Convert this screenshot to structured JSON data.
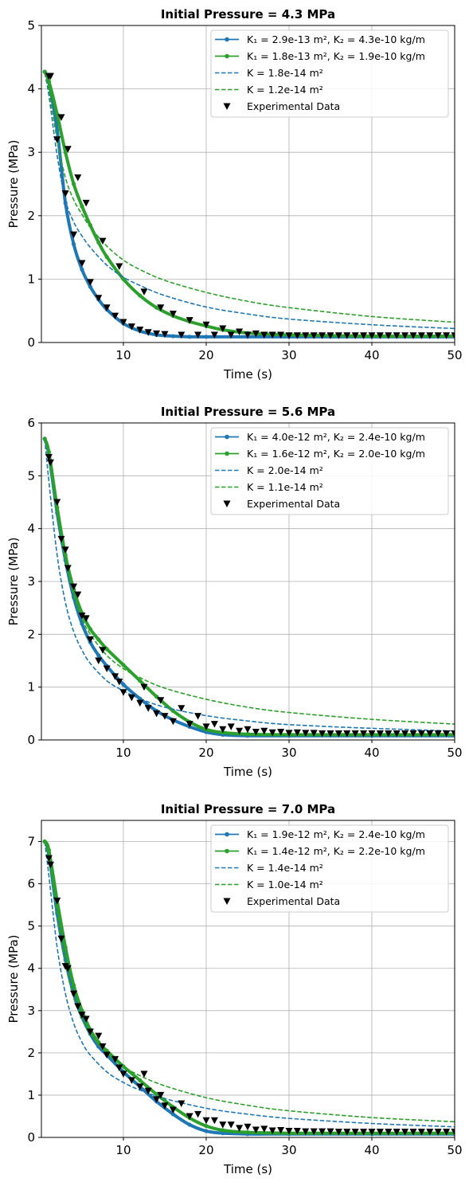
{
  "colors": {
    "blue": "#1f77b4",
    "green": "#2ca02c",
    "marker": "#000000",
    "grid": "#b0b0b0",
    "legend_border": "#cccccc"
  },
  "chart_data": [
    {
      "type": "line",
      "title": "Initial Pressure = 4.3 MPa",
      "xlabel": "Time (s)",
      "ylabel": "Pressure (MPa)",
      "xlim": [
        0.1,
        50
      ],
      "ylim": [
        0,
        5
      ],
      "xticks": [
        10,
        20,
        30,
        40,
        50
      ],
      "yticks": [
        0,
        1,
        2,
        3,
        4,
        5
      ],
      "grid": true,
      "legend_position": "upper right",
      "series": [
        {
          "name": "K₁ = 2.9e-13 m², K₂ = 4.3e-10 kg/m",
          "style": "line-dots",
          "color": "blue",
          "x": [
            0.5,
            1,
            2,
            3,
            4,
            5,
            6,
            7,
            8,
            10,
            12,
            14,
            16,
            18,
            20,
            25,
            30,
            40,
            50
          ],
          "y": [
            4.27,
            4.1,
            3.35,
            2.2,
            1.55,
            1.15,
            0.88,
            0.68,
            0.52,
            0.3,
            0.18,
            0.12,
            0.1,
            0.09,
            0.09,
            0.09,
            0.09,
            0.09,
            0.09
          ]
        },
        {
          "name": "K₁ = 1.8e-13 m², K₂ = 1.9e-10 kg/m",
          "style": "line-dots",
          "color": "green",
          "x": [
            0.5,
            1,
            2,
            3,
            4,
            5,
            6,
            7,
            8,
            10,
            12,
            14,
            16,
            18,
            20,
            22,
            25,
            30,
            40,
            50
          ],
          "y": [
            4.27,
            4.12,
            3.6,
            3.0,
            2.5,
            2.15,
            1.85,
            1.58,
            1.35,
            1.0,
            0.74,
            0.55,
            0.42,
            0.33,
            0.26,
            0.2,
            0.15,
            0.12,
            0.1,
            0.1
          ]
        },
        {
          "name": "K = 1.8e-14 m²",
          "style": "dashed",
          "color": "blue",
          "x": [
            0.5,
            1,
            2,
            3,
            4,
            5,
            6,
            8,
            10,
            12,
            15,
            20,
            25,
            30,
            40,
            50
          ],
          "y": [
            4.25,
            3.9,
            2.95,
            2.25,
            1.9,
            1.68,
            1.5,
            1.22,
            1.03,
            0.9,
            0.74,
            0.56,
            0.45,
            0.37,
            0.28,
            0.22
          ]
        },
        {
          "name": "K = 1.2e-14 m²",
          "style": "dashed",
          "color": "green",
          "x": [
            0.5,
            1,
            2,
            3,
            4,
            5,
            6,
            8,
            10,
            12,
            15,
            20,
            25,
            30,
            40,
            50
          ],
          "y": [
            4.25,
            4.0,
            3.2,
            2.6,
            2.25,
            2.02,
            1.82,
            1.52,
            1.3,
            1.15,
            0.98,
            0.79,
            0.65,
            0.55,
            0.41,
            0.32
          ]
        },
        {
          "name": "Experimental Data",
          "style": "markers",
          "color": "marker",
          "x": [
            1,
            1.2,
            2,
            2.5,
            3,
            3.3,
            4,
            4.5,
            5,
            5.5,
            6,
            7,
            7.5,
            8,
            9,
            9.5,
            10,
            11,
            12,
            12.5,
            13,
            14,
            14.5,
            15,
            16,
            17,
            18,
            19,
            20,
            21,
            22,
            23,
            24,
            25,
            26,
            27,
            28,
            29,
            30,
            31,
            32,
            33,
            34,
            35,
            36,
            37,
            38,
            39,
            40,
            41,
            42,
            43,
            44,
            45,
            46,
            47,
            48,
            49,
            50
          ],
          "y": [
            4.2,
            4.2,
            3.2,
            3.55,
            2.35,
            3.05,
            1.7,
            2.6,
            1.25,
            2.2,
            0.95,
            0.7,
            1.6,
            0.55,
            0.42,
            1.2,
            0.32,
            0.25,
            0.2,
            0.8,
            0.16,
            0.14,
            0.55,
            0.13,
            0.45,
            0.12,
            0.35,
            0.12,
            0.28,
            0.12,
            0.22,
            0.12,
            0.17,
            0.12,
            0.14,
            0.12,
            0.12,
            0.12,
            0.11,
            0.11,
            0.11,
            0.11,
            0.11,
            0.11,
            0.11,
            0.11,
            0.11,
            0.11,
            0.11,
            0.11,
            0.11,
            0.11,
            0.11,
            0.11,
            0.11,
            0.11,
            0.11,
            0.11,
            0.11
          ]
        }
      ]
    },
    {
      "type": "line",
      "title": "Initial Pressure = 5.6 MPa",
      "xlabel": "Time (s)",
      "ylabel": "Pressure (MPa)",
      "xlim": [
        0.1,
        50
      ],
      "ylim": [
        0,
        6
      ],
      "xticks": [
        10,
        20,
        30,
        40,
        50
      ],
      "yticks": [
        0,
        1,
        2,
        3,
        4,
        5,
        6
      ],
      "grid": true,
      "legend_position": "upper right",
      "series": [
        {
          "name": "K₁ = 4.0e-12 m², K₂ = 2.4e-10 kg/m",
          "style": "line-dots",
          "color": "blue",
          "x": [
            0.5,
            1,
            2,
            3,
            4,
            5,
            6,
            7,
            8,
            10,
            12,
            14,
            16,
            18,
            20,
            22,
            25,
            30,
            40,
            50
          ],
          "y": [
            5.7,
            5.4,
            4.3,
            3.4,
            2.7,
            2.2,
            1.85,
            1.6,
            1.4,
            1.05,
            0.78,
            0.55,
            0.38,
            0.25,
            0.15,
            0.1,
            0.08,
            0.08,
            0.08,
            0.08
          ]
        },
        {
          "name": "K₁ = 1.6e-12 m², K₂ = 2.0e-10 kg/m",
          "style": "line-dots",
          "color": "green",
          "x": [
            0.5,
            1,
            2,
            3,
            4,
            5,
            6,
            7,
            8,
            10,
            12,
            14,
            16,
            18,
            20,
            22,
            25,
            30,
            40,
            50
          ],
          "y": [
            5.7,
            5.45,
            4.4,
            3.5,
            2.85,
            2.4,
            2.1,
            1.9,
            1.72,
            1.42,
            1.12,
            0.82,
            0.55,
            0.34,
            0.2,
            0.14,
            0.11,
            0.1,
            0.1,
            0.1
          ]
        },
        {
          "name": "K = 2.0e-14 m²",
          "style": "dashed",
          "color": "blue",
          "x": [
            0.5,
            1,
            2,
            3,
            4,
            5,
            6,
            8,
            10,
            12,
            15,
            20,
            25,
            30,
            40,
            50
          ],
          "y": [
            5.7,
            4.9,
            3.5,
            2.6,
            2.05,
            1.7,
            1.45,
            1.12,
            0.93,
            0.78,
            0.62,
            0.46,
            0.36,
            0.29,
            0.22,
            0.17
          ]
        },
        {
          "name": "K = 1.1e-14 m²",
          "style": "dashed",
          "color": "green",
          "x": [
            0.5,
            1,
            2,
            3,
            4,
            5,
            6,
            8,
            10,
            12,
            15,
            20,
            25,
            30,
            40,
            50
          ],
          "y": [
            5.7,
            5.35,
            4.4,
            3.45,
            2.75,
            2.3,
            2.0,
            1.6,
            1.35,
            1.18,
            0.98,
            0.77,
            0.62,
            0.52,
            0.39,
            0.3
          ]
        },
        {
          "name": "Experimental Data",
          "style": "markers",
          "color": "marker",
          "x": [
            1,
            1.2,
            2,
            2.5,
            3,
            3.3,
            4,
            4.5,
            5,
            5.5,
            6,
            7,
            7.5,
            8,
            9,
            9.5,
            10,
            11,
            12,
            12.5,
            13,
            14,
            14.5,
            15,
            16,
            17,
            18,
            19,
            20,
            21,
            22,
            23,
            24,
            25,
            26,
            27,
            28,
            29,
            30,
            31,
            32,
            33,
            34,
            35,
            36,
            37,
            38,
            39,
            40,
            41,
            42,
            43,
            44,
            45,
            46,
            47,
            48,
            49,
            50
          ],
          "y": [
            5.35,
            5.25,
            4.5,
            3.8,
            3.6,
            3.25,
            2.9,
            2.75,
            2.35,
            2.3,
            1.9,
            1.5,
            1.7,
            1.35,
            1.2,
            1.1,
            0.9,
            0.8,
            0.7,
            1.0,
            0.6,
            0.5,
            0.75,
            0.45,
            0.35,
            0.6,
            0.3,
            0.45,
            0.25,
            0.3,
            0.2,
            0.25,
            0.17,
            0.2,
            0.15,
            0.17,
            0.14,
            0.15,
            0.13,
            0.14,
            0.13,
            0.13,
            0.12,
            0.12,
            0.12,
            0.12,
            0.12,
            0.12,
            0.12,
            0.12,
            0.12,
            0.12,
            0.12,
            0.12,
            0.12,
            0.12,
            0.12,
            0.12,
            0.12
          ]
        }
      ]
    },
    {
      "type": "line",
      "title": "Initial Pressure = 7.0 MPa",
      "xlabel": "Time (s)",
      "ylabel": "Pressure (MPa)",
      "xlim": [
        0.1,
        50
      ],
      "ylim": [
        0,
        7.5
      ],
      "xticks": [
        10,
        20,
        30,
        40,
        50
      ],
      "yticks": [
        0,
        1,
        2,
        3,
        4,
        5,
        6,
        7
      ],
      "grid": true,
      "legend_position": "upper right",
      "series": [
        {
          "name": "K₁ = 1.9e-12 m², K₂ = 2.4e-10 kg/m",
          "style": "line-dots",
          "color": "blue",
          "x": [
            0.5,
            1,
            2,
            3,
            4,
            5,
            6,
            7,
            8,
            10,
            12,
            14,
            16,
            18,
            20,
            22,
            25,
            30,
            40,
            50
          ],
          "y": [
            7.0,
            6.7,
            5.3,
            4.2,
            3.4,
            2.85,
            2.45,
            2.15,
            1.95,
            1.55,
            1.2,
            0.85,
            0.55,
            0.3,
            0.15,
            0.1,
            0.08,
            0.08,
            0.08,
            0.08
          ]
        },
        {
          "name": "K₁ = 1.4e-12 m², K₂ = 2.2e-10 kg/m",
          "style": "line-dots",
          "color": "green",
          "x": [
            0.5,
            1,
            2,
            3,
            4,
            5,
            6,
            7,
            8,
            10,
            12,
            14,
            16,
            18,
            20,
            22,
            25,
            30,
            40,
            50
          ],
          "y": [
            7.0,
            6.8,
            5.6,
            4.5,
            3.6,
            3.0,
            2.55,
            2.25,
            2.05,
            1.68,
            1.35,
            1.02,
            0.72,
            0.46,
            0.27,
            0.17,
            0.12,
            0.1,
            0.1,
            0.1
          ]
        },
        {
          "name": "K = 1.4e-14 m²",
          "style": "dashed",
          "color": "blue",
          "x": [
            0.5,
            1,
            2,
            3,
            4,
            5,
            6,
            8,
            10,
            12,
            15,
            20,
            25,
            30,
            40,
            50
          ],
          "y": [
            7.0,
            6.2,
            4.5,
            3.4,
            2.7,
            2.25,
            1.95,
            1.55,
            1.3,
            1.12,
            0.92,
            0.69,
            0.55,
            0.45,
            0.33,
            0.25
          ]
        },
        {
          "name": "K = 1.0e-14 m²",
          "style": "dashed",
          "color": "green",
          "x": [
            0.5,
            1,
            2,
            3,
            4,
            5,
            6,
            8,
            10,
            12,
            15,
            20,
            25,
            30,
            40,
            50
          ],
          "y": [
            7.0,
            6.6,
            5.3,
            4.1,
            3.3,
            2.8,
            2.45,
            1.98,
            1.68,
            1.46,
            1.22,
            0.94,
            0.76,
            0.63,
            0.47,
            0.37
          ]
        },
        {
          "name": "Experimental Data",
          "style": "markers",
          "color": "marker",
          "x": [
            1,
            1.2,
            2,
            2.5,
            3,
            3.3,
            4,
            4.5,
            5,
            5.5,
            6,
            7,
            7.5,
            8,
            9,
            9.5,
            10,
            11,
            12,
            12.5,
            13,
            14,
            14.5,
            15,
            16,
            17,
            18,
            19,
            20,
            21,
            22,
            23,
            24,
            25,
            26,
            27,
            28,
            29,
            30,
            31,
            32,
            33,
            34,
            35,
            36,
            37,
            38,
            39,
            40,
            41,
            42,
            43,
            44,
            45,
            46,
            47,
            48,
            49,
            50
          ],
          "y": [
            6.6,
            6.45,
            5.6,
            4.7,
            4.05,
            4.0,
            3.4,
            3.1,
            2.9,
            2.8,
            2.5,
            2.4,
            2.15,
            1.95,
            1.85,
            1.65,
            1.5,
            1.35,
            1.2,
            1.5,
            1.1,
            0.9,
            1.0,
            0.75,
            0.65,
            0.8,
            0.5,
            0.55,
            0.4,
            0.4,
            0.3,
            0.3,
            0.22,
            0.25,
            0.18,
            0.2,
            0.16,
            0.17,
            0.15,
            0.15,
            0.14,
            0.14,
            0.14,
            0.14,
            0.13,
            0.13,
            0.13,
            0.13,
            0.13,
            0.13,
            0.13,
            0.13,
            0.13,
            0.13,
            0.13,
            0.13,
            0.13,
            0.13,
            0.13
          ]
        }
      ]
    }
  ]
}
